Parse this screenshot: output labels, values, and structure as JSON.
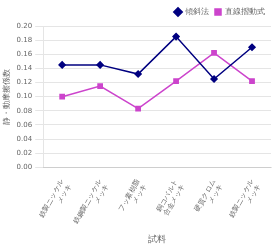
{
  "chart_data": {
    "type": "line",
    "categories": [
      "鉄製ニッケル\nメッキ",
      "鉄鋼製ニッケル\nメッキ",
      "フッ素樹脂\nメッキ",
      "銅コバルト\n合金メッキ",
      "硬質クロム\nメッキ",
      "鉄製ニッケル\nメッキ"
    ],
    "series": [
      {
        "name": "傾斜法",
        "color": "#000080",
        "marker": "diamond",
        "values": [
          0.145,
          0.145,
          0.132,
          0.185,
          0.125,
          0.17
        ]
      },
      {
        "name": "直線摺動式",
        "color": "#cc44cc",
        "marker": "square",
        "values": [
          0.1,
          0.115,
          0.083,
          0.122,
          0.162,
          0.122
        ]
      }
    ],
    "xlabel": "試料",
    "ylabel": "静・動摩擦係数",
    "ylim": [
      0,
      0.2
    ],
    "yticks": [
      {
        "value": 0,
        "label": "0.00"
      },
      {
        "value": 0.02,
        "label": "0.02"
      },
      {
        "value": 0.04,
        "label": "0.04"
      },
      {
        "value": 0.06,
        "label": "0.06"
      },
      {
        "value": 0.08,
        "label": "0.08"
      },
      {
        "value": 0.1,
        "label": "0.10"
      },
      {
        "value": 0.12,
        "label": "0.12"
      },
      {
        "value": 0.14,
        "label": "0.14"
      },
      {
        "value": 0.16,
        "label": "0.16"
      },
      {
        "value": 0.18,
        "label": "0.18"
      },
      {
        "value": 0.2,
        "label": "0.20"
      }
    ],
    "grid": "y",
    "legend": "upper right"
  }
}
